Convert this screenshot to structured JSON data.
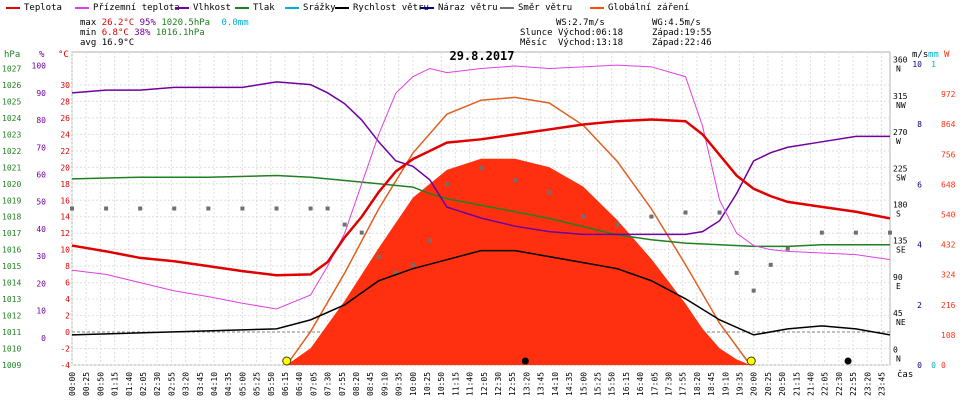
{
  "legend": [
    {
      "label": "Teplota",
      "color": "#e00000"
    },
    {
      "label": "Přízemní teplota",
      "color": "#e040e0"
    },
    {
      "label": "Vlhkost",
      "color": "#7000a0"
    },
    {
      "label": "Tlak",
      "color": "#208020"
    },
    {
      "label": "Srážky",
      "color": "#00b0d0"
    },
    {
      "label": "Rychlost větru",
      "color": "#000000"
    },
    {
      "label": "Náraz větru",
      "color": "#000080"
    },
    {
      "label": "Směr větru",
      "color": "#707070"
    },
    {
      "label": "Globální záření",
      "color": "#ff5000"
    }
  ],
  "stats": {
    "max": {
      "label": "max",
      "temp": "26.2°C",
      "hum": "95%",
      "press": "1020.5hPa",
      "rain": "0.0mm"
    },
    "min": {
      "label": "min",
      "temp": "6.8°C",
      "hum": "38%",
      "press": "1016.1hPa"
    },
    "avg": {
      "label": "avg",
      "temp": "16.9°C"
    }
  },
  "info": {
    "ws": "WS:2.7m/s",
    "wg": "WG:4.5m/s",
    "sun_label": "Slunce",
    "sunrise": "Východ:06:18",
    "sunset": "Západ:19:55",
    "moon_label": "Měsíc",
    "moonrise": "Východ:13:18",
    "moonset": "Západ:22:46"
  },
  "colors": {
    "temp": "#e00000",
    "dew": "#e040e0",
    "hum": "#7000a0",
    "press": "#208020",
    "rain": "#00b0d0",
    "wind": "#000000",
    "gust": "#000080",
    "dir": "#707070",
    "rad": "#ff3010",
    "radmax": "#e06020"
  },
  "chart_data": {
    "type": "line",
    "title": "29.8.2017",
    "xlabel": "čas",
    "axes": {
      "hpa": {
        "unit": "hPa",
        "range": [
          1009,
          1028
        ],
        "ticks": [
          1009,
          1010,
          1011,
          1012,
          1013,
          1014,
          1015,
          1016,
          1017,
          1018,
          1019,
          1020,
          1021,
          1022,
          1023,
          1024,
          1025,
          1026,
          1027
        ]
      },
      "pct": {
        "unit": "%",
        "range": [
          -10,
          105
        ],
        "ticks": [
          0,
          10,
          20,
          30,
          40,
          50,
          60,
          70,
          80,
          90,
          100
        ]
      },
      "degc": {
        "unit": "°C",
        "range": [
          -4,
          34
        ],
        "ticks": [
          -4,
          -2,
          0,
          2,
          4,
          6,
          8,
          10,
          12,
          14,
          16,
          18,
          20,
          22,
          24,
          26,
          28,
          30
        ]
      },
      "ms": {
        "unit": "m/s",
        "range": [
          0,
          10.4
        ],
        "ticks": [
          0,
          2,
          4,
          6,
          8,
          10
        ]
      },
      "mm": {
        "unit": "mm",
        "range": [
          0,
          1.04
        ],
        "ticks": [
          0,
          1
        ]
      },
      "dir": {
        "range": [
          -14.4,
          374.4
        ],
        "ticks": [
          0,
          45,
          90,
          135,
          180,
          225,
          270,
          315,
          360
        ],
        "labels": [
          "N",
          "NE",
          "E",
          "SE",
          "S",
          "SW",
          "W",
          "NW",
          "N"
        ]
      },
      "w": {
        "unit": "W",
        "range": [
          0,
          1123
        ],
        "ticks": [
          0,
          108,
          216,
          324,
          432,
          540,
          648,
          756,
          864,
          972
        ]
      }
    },
    "x_ticks": [
      "00:00",
      "00:25",
      "00:50",
      "01:15",
      "01:40",
      "02:05",
      "02:30",
      "02:55",
      "03:20",
      "03:45",
      "04:10",
      "04:35",
      "05:00",
      "05:25",
      "05:50",
      "06:15",
      "06:40",
      "07:05",
      "07:30",
      "07:55",
      "08:20",
      "08:45",
      "09:10",
      "09:35",
      "10:00",
      "10:25",
      "10:50",
      "11:15",
      "11:40",
      "12:05",
      "12:30",
      "12:55",
      "13:20",
      "13:45",
      "14:10",
      "14:35",
      "15:00",
      "15:25",
      "15:50",
      "16:15",
      "16:40",
      "17:05",
      "17:30",
      "17:55",
      "18:20",
      "18:45",
      "19:10",
      "19:35",
      "20:00",
      "20:25",
      "20:50",
      "21:15",
      "21:40",
      "22:05",
      "22:30",
      "22:55",
      "23:20",
      "23:45"
    ],
    "series": [
      {
        "name": "Teplota",
        "axis": "degc",
        "x": [
          0,
          1,
          2,
          3,
          4,
          5,
          6,
          7,
          7.5,
          8,
          8.5,
          9,
          9.5,
          10,
          10.5,
          11,
          12,
          13,
          14,
          15,
          16,
          17,
          18,
          18.5,
          19,
          19.5,
          20,
          20.5,
          21,
          22,
          23,
          24
        ],
        "y": [
          10.5,
          9.8,
          9,
          8.6,
          8,
          7.4,
          6.9,
          7,
          8.5,
          11.5,
          14,
          17,
          19.5,
          21,
          22,
          23,
          23.4,
          24,
          24.6,
          25.2,
          25.6,
          25.8,
          25.6,
          24,
          21.5,
          19,
          17.4,
          16.5,
          15.8,
          15.2,
          14.6,
          13.8
        ]
      },
      {
        "name": "Přízemní teplota",
        "axis": "degc",
        "x": [
          0,
          1,
          2,
          3,
          4,
          5,
          6,
          7,
          7.5,
          8,
          8.5,
          9,
          9.5,
          10,
          10.5,
          11,
          12,
          13,
          14,
          15,
          16,
          17,
          18,
          18.5,
          19,
          19.5,
          20,
          20.5,
          21,
          22,
          23,
          24
        ],
        "y": [
          7.5,
          7,
          6,
          5,
          4.3,
          3.5,
          2.8,
          4.5,
          8,
          12,
          18,
          24,
          29,
          31,
          32,
          31.5,
          32,
          32.3,
          32,
          32.2,
          32.4,
          32.2,
          31,
          25,
          16,
          12,
          10.5,
          10,
          9.8,
          9.6,
          9.4,
          8.8
        ]
      },
      {
        "name": "Vlhkost",
        "axis": "pct",
        "x": [
          0,
          1,
          2,
          3,
          4,
          5,
          6,
          7,
          7.5,
          8,
          8.5,
          9,
          9.5,
          10,
          10.5,
          11,
          12,
          13,
          14,
          15,
          16,
          17,
          18,
          18.5,
          19,
          19.5,
          20,
          20.5,
          21,
          22,
          23,
          24
        ],
        "y": [
          90,
          91,
          91,
          92,
          92,
          92,
          94,
          93,
          90,
          86,
          80,
          72,
          65,
          63,
          58,
          48,
          44,
          41,
          39,
          38,
          38,
          38,
          38,
          39,
          43,
          53,
          65,
          68,
          70,
          72,
          74,
          74
        ]
      },
      {
        "name": "Tlak",
        "axis": "hpa",
        "x": [
          0,
          2,
          4,
          6,
          7,
          8,
          9,
          10,
          10.5,
          11,
          12,
          13,
          14,
          15,
          16,
          17,
          18,
          19,
          20,
          21,
          22,
          23,
          24
        ],
        "y": [
          1020.3,
          1020.4,
          1020.4,
          1020.5,
          1020.4,
          1020.2,
          1020,
          1019.8,
          1019.4,
          1019.1,
          1018.7,
          1018.3,
          1017.9,
          1017.4,
          1016.9,
          1016.6,
          1016.4,
          1016.3,
          1016.2,
          1016.2,
          1016.3,
          1016.3,
          1016.3
        ]
      },
      {
        "name": "Rychlost větru",
        "axis": "ms",
        "x": [
          0,
          6,
          7,
          8,
          9,
          10,
          11,
          12,
          13,
          14,
          15,
          16,
          17,
          18,
          19,
          20,
          21,
          22,
          23,
          24
        ],
        "y": [
          1,
          1.2,
          1.5,
          2,
          2.8,
          3.2,
          3.5,
          3.8,
          3.8,
          3.6,
          3.4,
          3.2,
          2.8,
          2.2,
          1.5,
          1,
          1.2,
          1.3,
          1.2,
          1
        ]
      },
      {
        "name": "Globální záření",
        "axis": "w",
        "x": [
          6.3,
          7,
          8,
          9,
          10,
          11,
          12,
          13,
          14,
          15,
          16,
          17,
          18,
          18.5,
          19,
          19.5,
          19.9
        ],
        "y": [
          0,
          60,
          230,
          420,
          600,
          700,
          740,
          740,
          710,
          640,
          520,
          380,
          220,
          130,
          60,
          20,
          0
        ]
      },
      {
        "name": "Globální záření max",
        "axis": "w",
        "x": [
          6.3,
          7,
          8,
          9,
          10,
          11,
          12,
          13,
          14,
          15,
          16,
          17,
          18,
          19,
          19.9
        ],
        "y": [
          0,
          120,
          330,
          560,
          760,
          900,
          950,
          960,
          940,
          860,
          730,
          560,
          360,
          150,
          0
        ]
      }
    ],
    "wind_direction": {
      "axis": "dir",
      "x": [
        0,
        1,
        2,
        3,
        4,
        5,
        6,
        7,
        7.5,
        8,
        8.5,
        9,
        9.5,
        10,
        10.5,
        11,
        12,
        13,
        14,
        15,
        16,
        17,
        18,
        19,
        19.5,
        20,
        20.5,
        21,
        22,
        23,
        24
      ],
      "y": [
        180,
        180,
        180,
        180,
        180,
        180,
        180,
        180,
        180,
        160,
        150,
        120,
        100,
        110,
        140,
        210,
        230,
        215,
        200,
        170,
        160,
        170,
        175,
        175,
        100,
        78,
        110,
        130,
        150,
        150,
        150
      ]
    }
  },
  "sunmarkers": {
    "sunrise_x": 6.3,
    "sunset_x": 19.93,
    "moonrise_x": 13.3,
    "moonset_x": 22.77
  }
}
